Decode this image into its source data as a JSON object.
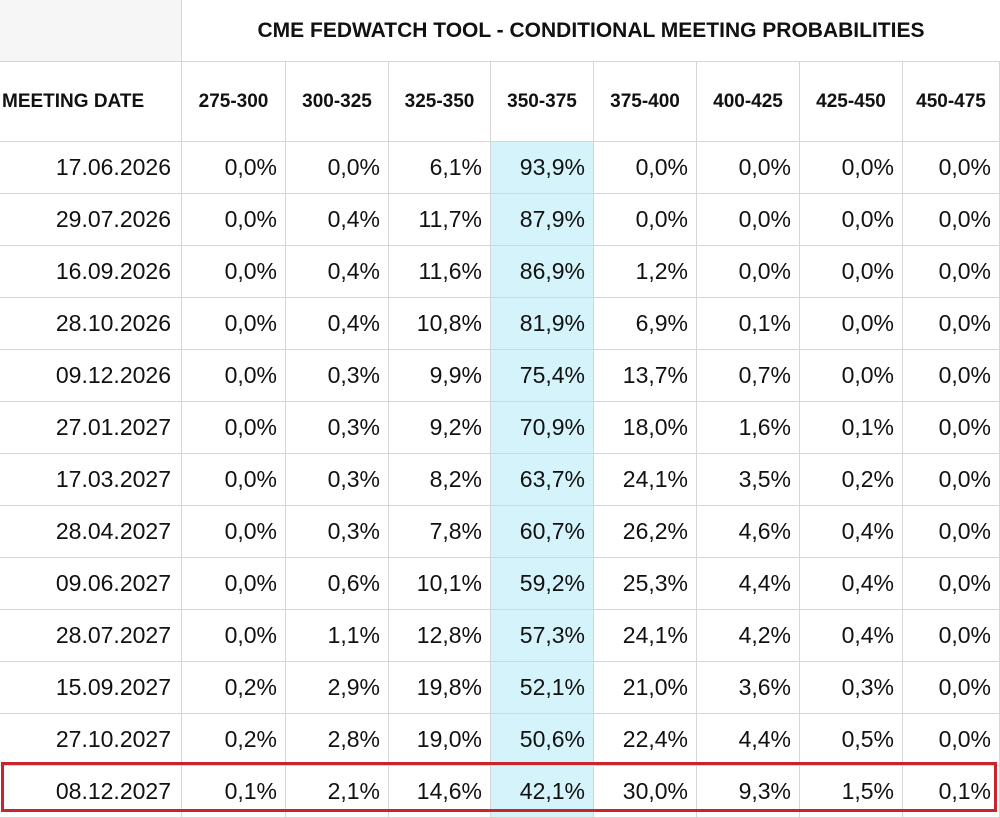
{
  "title": "CME FEDWATCH TOOL - CONDITIONAL MEETING PROBABILITIES",
  "row_header": "MEETING DATE",
  "highlight_color": "#d4f3fa",
  "outline_color": "#c8242c",
  "chart_data": {
    "type": "table",
    "title": "CME FEDWATCH TOOL - CONDITIONAL MEETING PROBABILITIES",
    "columns": [
      "275-300",
      "300-325",
      "325-350",
      "350-375",
      "375-400",
      "400-425",
      "425-450",
      "450-475"
    ],
    "highlighted_column": "350-375",
    "outlined_row": "08.12.2027",
    "rows": [
      {
        "date": "17.06.2026",
        "values": [
          "0,0%",
          "0,0%",
          "6,1%",
          "93,9%",
          "0,0%",
          "0,0%",
          "0,0%",
          "0,0%"
        ]
      },
      {
        "date": "29.07.2026",
        "values": [
          "0,0%",
          "0,4%",
          "11,7%",
          "87,9%",
          "0,0%",
          "0,0%",
          "0,0%",
          "0,0%"
        ]
      },
      {
        "date": "16.09.2026",
        "values": [
          "0,0%",
          "0,4%",
          "11,6%",
          "86,9%",
          "1,2%",
          "0,0%",
          "0,0%",
          "0,0%"
        ]
      },
      {
        "date": "28.10.2026",
        "values": [
          "0,0%",
          "0,4%",
          "10,8%",
          "81,9%",
          "6,9%",
          "0,1%",
          "0,0%",
          "0,0%"
        ]
      },
      {
        "date": "09.12.2026",
        "values": [
          "0,0%",
          "0,3%",
          "9,9%",
          "75,4%",
          "13,7%",
          "0,7%",
          "0,0%",
          "0,0%"
        ]
      },
      {
        "date": "27.01.2027",
        "values": [
          "0,0%",
          "0,3%",
          "9,2%",
          "70,9%",
          "18,0%",
          "1,6%",
          "0,1%",
          "0,0%"
        ]
      },
      {
        "date": "17.03.2027",
        "values": [
          "0,0%",
          "0,3%",
          "8,2%",
          "63,7%",
          "24,1%",
          "3,5%",
          "0,2%",
          "0,0%"
        ]
      },
      {
        "date": "28.04.2027",
        "values": [
          "0,0%",
          "0,3%",
          "7,8%",
          "60,7%",
          "26,2%",
          "4,6%",
          "0,4%",
          "0,0%"
        ]
      },
      {
        "date": "09.06.2027",
        "values": [
          "0,0%",
          "0,6%",
          "10,1%",
          "59,2%",
          "25,3%",
          "4,4%",
          "0,4%",
          "0,0%"
        ]
      },
      {
        "date": "28.07.2027",
        "values": [
          "0,0%",
          "1,1%",
          "12,8%",
          "57,3%",
          "24,1%",
          "4,2%",
          "0,4%",
          "0,0%"
        ]
      },
      {
        "date": "15.09.2027",
        "values": [
          "0,2%",
          "2,9%",
          "19,8%",
          "52,1%",
          "21,0%",
          "3,6%",
          "0,3%",
          "0,0%"
        ]
      },
      {
        "date": "27.10.2027",
        "values": [
          "0,2%",
          "2,8%",
          "19,0%",
          "50,6%",
          "22,4%",
          "4,4%",
          "0,5%",
          "0,0%"
        ]
      },
      {
        "date": "08.12.2027",
        "values": [
          "0,1%",
          "2,1%",
          "14,6%",
          "42,1%",
          "30,0%",
          "9,3%",
          "1,5%",
          "0,1%"
        ]
      }
    ]
  }
}
